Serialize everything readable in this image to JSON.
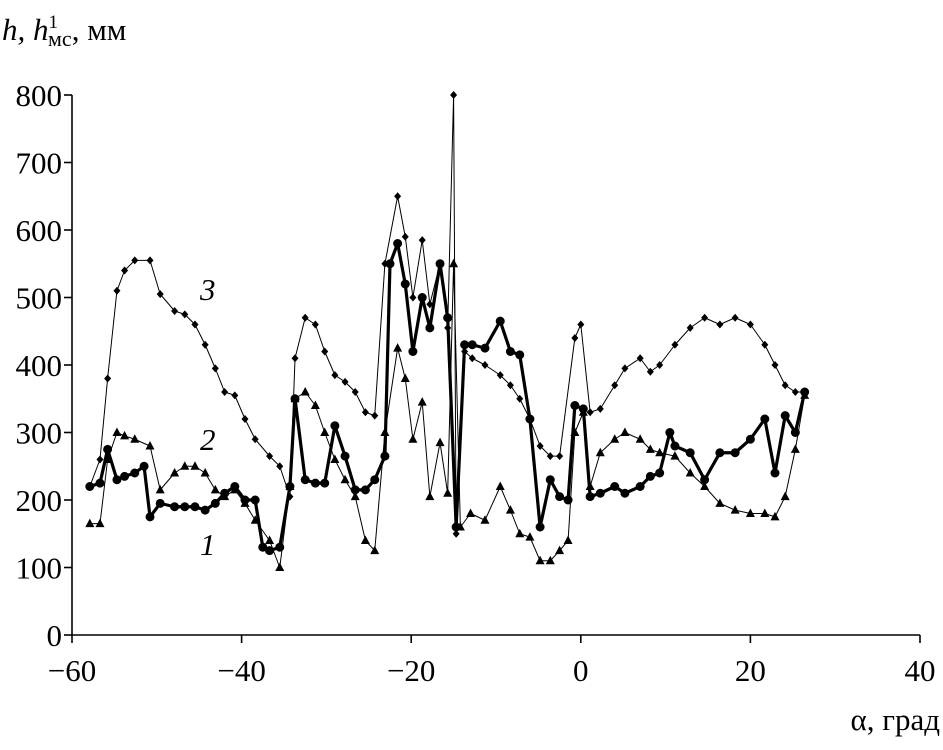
{
  "chart_data": {
    "type": "line",
    "y_label": "h, h",
    "y_label_sup": "1",
    "y_label_sub": "мс",
    "y_label_unit": ", мм",
    "x_label": "α, град",
    "annotations": [
      "1",
      "2",
      "3"
    ],
    "xlim": [
      -60,
      40
    ],
    "xticks": [
      {
        "value": -60,
        "label": "−60"
      },
      {
        "value": -40,
        "label": "−40"
      },
      {
        "value": -20,
        "label": "−20"
      },
      0,
      20,
      40
    ],
    "ylim": [
      0,
      800
    ],
    "yticks": [
      0,
      100,
      200,
      300,
      400,
      500,
      600,
      700,
      800
    ],
    "grid": false,
    "series": [
      {
        "name": "1",
        "color": "#000000",
        "marker": "circle",
        "line_width": 3.2,
        "x": [
          -57.9,
          -56.7,
          -55.8,
          -54.7,
          -53.8,
          -52.6,
          -51.5,
          -50.8,
          -49.6,
          -47.9,
          -46.7,
          -45.5,
          -44.3,
          -43.1,
          -42,
          -40.8,
          -39.6,
          -38.4,
          -37.5,
          -36.7,
          -35.5,
          -34.3,
          -33.7,
          -32.5,
          -31.3,
          -30.2,
          -29,
          -27.8,
          -26.6,
          -25.4,
          -24.3,
          -23.1,
          -22.5,
          -21.6,
          -20.7,
          -19.8,
          -18.7,
          -17.8,
          -16.6,
          -15.7,
          -14.7,
          -13.7,
          -12.8,
          -11.3,
          -9.5,
          -8.3,
          -7.2,
          -6,
          -4.8,
          -3.6,
          -2.5,
          -1.5,
          -0.7,
          0.3,
          1.1,
          2.3,
          4,
          5.2,
          7,
          8.2,
          9.3,
          10.5,
          11.1,
          12.9,
          14.6,
          16.4,
          18.2,
          20,
          21.7,
          22.9,
          24.1,
          25.3,
          26.4
        ],
        "values": [
          220,
          225,
          275,
          230,
          235,
          240,
          250,
          175,
          195,
          190,
          190,
          190,
          185,
          195,
          210,
          220,
          200,
          200,
          130,
          125,
          130,
          220,
          350,
          230,
          225,
          225,
          310,
          265,
          215,
          215,
          230,
          265,
          550,
          580,
          520,
          420,
          500,
          455,
          550,
          470,
          160,
          430,
          430,
          425,
          465,
          420,
          415,
          320,
          160,
          230,
          205,
          200,
          340,
          335,
          205,
          210,
          220,
          210,
          220,
          235,
          240,
          300,
          280,
          270,
          230,
          270,
          270,
          290,
          320,
          240,
          325,
          300,
          360
        ]
      },
      {
        "name": "2",
        "color": "#000000",
        "marker": "triangle",
        "line_width": 1,
        "x": [
          -57.9,
          -56.7,
          -55.8,
          -54.7,
          -53.8,
          -52.6,
          -50.8,
          -49.6,
          -47.9,
          -46.7,
          -45.5,
          -44.3,
          -43.1,
          -42,
          -40.8,
          -39.6,
          -38.4,
          -36.7,
          -35.5,
          -34.3,
          -33.7,
          -32.5,
          -31.3,
          -30.2,
          -29,
          -27.8,
          -26.6,
          -25.4,
          -24.3,
          -23.1,
          -21.6,
          -20.7,
          -19.8,
          -18.7,
          -17.8,
          -16.6,
          -15.7,
          -15,
          -14.2,
          -13,
          -11.3,
          -9.5,
          -8.3,
          -7.2,
          -6,
          -4.8,
          -3.6,
          -2.5,
          -1.5,
          -0.7,
          0.3,
          1.1,
          2.3,
          4,
          5.2,
          7,
          8.2,
          9.3,
          11.1,
          12.9,
          14.6,
          16.4,
          18.2,
          20,
          21.7,
          22.9,
          24.1,
          25.3,
          26.4
        ],
        "values": [
          165,
          165,
          260,
          300,
          295,
          290,
          280,
          215,
          240,
          250,
          250,
          240,
          215,
          205,
          215,
          195,
          170,
          140,
          100,
          220,
          350,
          360,
          340,
          300,
          260,
          230,
          205,
          140,
          125,
          300,
          425,
          380,
          290,
          345,
          205,
          285,
          210,
          550,
          160,
          180,
          170,
          220,
          185,
          150,
          145,
          110,
          110,
          125,
          140,
          300,
          330,
          220,
          270,
          290,
          300,
          290,
          275,
          270,
          265,
          240,
          220,
          195,
          185,
          180,
          180,
          175,
          205,
          275,
          355
        ]
      },
      {
        "name": "3",
        "color": "#000000",
        "marker": "diamond",
        "line_width": 1,
        "x": [
          -57.9,
          -56.7,
          -55.8,
          -54.7,
          -53.8,
          -52.6,
          -50.8,
          -49.6,
          -47.9,
          -46.7,
          -45.5,
          -44.3,
          -43.1,
          -42,
          -40.8,
          -39.6,
          -38.4,
          -36.7,
          -35.5,
          -34.3,
          -33.7,
          -32.5,
          -31.3,
          -30.2,
          -29,
          -27.8,
          -26.6,
          -25.4,
          -24.3,
          -23.1,
          -21.6,
          -20.7,
          -19.8,
          -18.7,
          -17.8,
          -16.6,
          -15.7,
          -15,
          -14.7,
          -13.7,
          -12.8,
          -11.3,
          -9.5,
          -8.3,
          -7.2,
          -6,
          -4.8,
          -3.6,
          -2.5,
          -0.7,
          0,
          1.1,
          2.3,
          4,
          5.2,
          7,
          8.2,
          9.3,
          11.1,
          12.9,
          14.6,
          16.4,
          18.2,
          20,
          21.7,
          22.9,
          24.1,
          25.3,
          26.4
        ],
        "values": [
          220,
          260,
          380,
          510,
          540,
          555,
          555,
          505,
          480,
          475,
          460,
          430,
          395,
          360,
          355,
          320,
          290,
          265,
          250,
          205,
          410,
          470,
          460,
          420,
          385,
          375,
          360,
          330,
          325,
          550,
          650,
          590,
          500,
          585,
          490,
          550,
          455,
          800,
          150,
          420,
          410,
          400,
          385,
          370,
          350,
          320,
          280,
          265,
          265,
          440,
          460,
          330,
          335,
          370,
          395,
          410,
          390,
          400,
          430,
          455,
          470,
          460,
          470,
          460,
          430,
          400,
          370,
          360,
          360
        ]
      }
    ]
  }
}
